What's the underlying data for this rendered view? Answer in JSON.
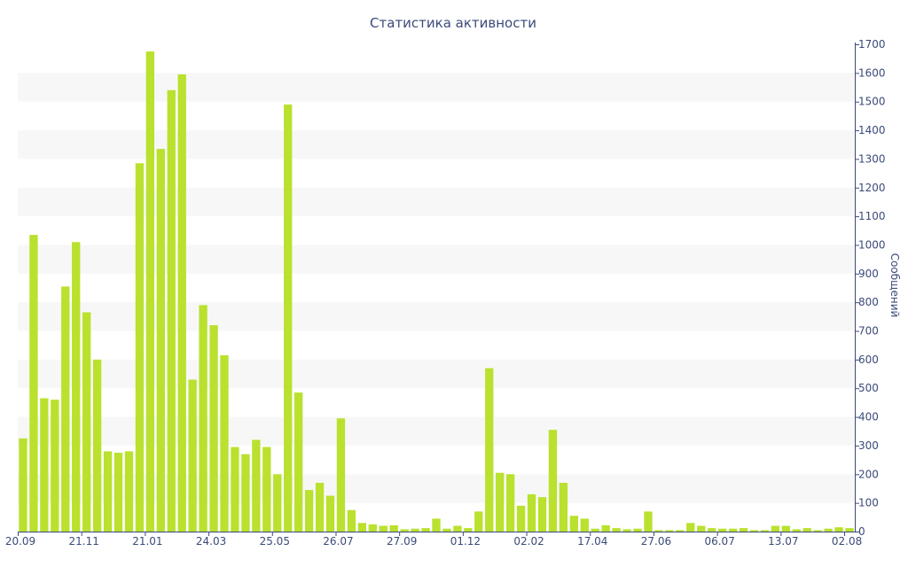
{
  "chart_data": {
    "type": "bar",
    "title": "Статистика активности",
    "ylabel": "Сообщений",
    "xlabel": "",
    "ylim": [
      0,
      1700
    ],
    "yticks": [
      0,
      100,
      200,
      300,
      400,
      500,
      600,
      700,
      800,
      900,
      1000,
      1100,
      1200,
      1300,
      1400,
      1500,
      1600,
      1700
    ],
    "grid": "alternating horizontal bands",
    "x_tick_labels": [
      {
        "index": 0,
        "label": "20.09"
      },
      {
        "index": 6,
        "label": "21.11"
      },
      {
        "index": 12,
        "label": "21.01"
      },
      {
        "index": 18,
        "label": "24.03"
      },
      {
        "index": 24,
        "label": "25.05"
      },
      {
        "index": 30,
        "label": "26.07"
      },
      {
        "index": 36,
        "label": "27.09"
      },
      {
        "index": 42,
        "label": "01.12"
      },
      {
        "index": 48,
        "label": "02.02"
      },
      {
        "index": 54,
        "label": "17.04"
      },
      {
        "index": 60,
        "label": "27.06"
      },
      {
        "index": 66,
        "label": "06.07"
      },
      {
        "index": 72,
        "label": "13.07"
      },
      {
        "index": 78,
        "label": "02.08"
      }
    ],
    "values": [
      325,
      1035,
      465,
      460,
      855,
      1010,
      765,
      600,
      280,
      275,
      280,
      1285,
      1675,
      1335,
      1540,
      1595,
      530,
      790,
      720,
      615,
      295,
      270,
      320,
      295,
      200,
      1490,
      485,
      145,
      170,
      125,
      395,
      75,
      30,
      25,
      20,
      22,
      8,
      10,
      12,
      45,
      10,
      20,
      12,
      70,
      570,
      205,
      200,
      90,
      130,
      120,
      355,
      170,
      55,
      45,
      10,
      22,
      12,
      8,
      10,
      70,
      5,
      5,
      5,
      30,
      20,
      12,
      10,
      10,
      12,
      5,
      5,
      20,
      20,
      8,
      12,
      5,
      10,
      15,
      12
    ],
    "colors": {
      "bar": "#b9e12e",
      "text": "#3b4a7a",
      "band": "#f7f7f7",
      "axis": "#3b4a7a"
    }
  }
}
